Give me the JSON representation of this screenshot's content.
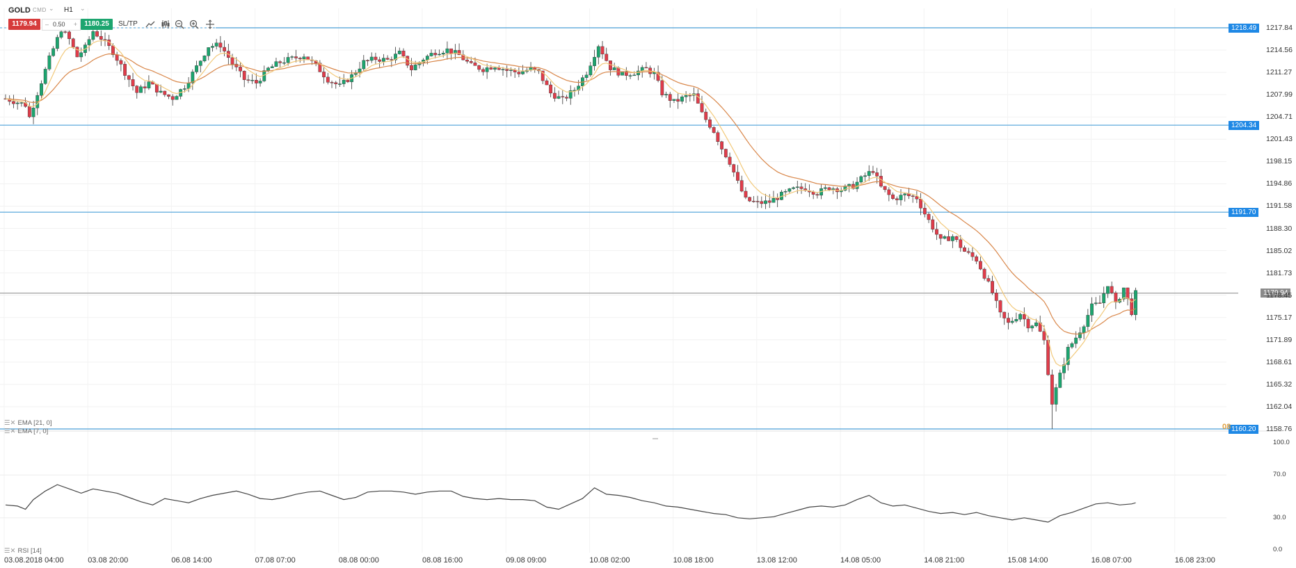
{
  "toolbar": {
    "symbol": "GOLD",
    "market": "CMD",
    "timeframe": "H1",
    "sell_price": "1179.94",
    "lot": "0.50",
    "buy_price": "1180.25",
    "sltp_label": "SL/TP",
    "icons": [
      "line-chart-icon",
      "candles-icon",
      "zoom-out-icon",
      "zoom-in-icon",
      "crosshair-icon"
    ]
  },
  "levels": [
    {
      "label": "1218.49",
      "value": 1218.49
    },
    {
      "label": "1204.34",
      "value": 1204.34
    },
    {
      "label": "1191.70",
      "value": 1191.7
    },
    {
      "label": "1160.20",
      "value": 1160.2
    }
  ],
  "current_price": {
    "label": "1179.94",
    "value": 1179.94
  },
  "price_axis": [
    "1217.84",
    "1214.56",
    "1211.27",
    "1207.99",
    "1204.71",
    "1201.43",
    "1198.15",
    "1194.86",
    "1191.58",
    "1188.30",
    "1185.02",
    "1181.73",
    "1178.45",
    "1175.17",
    "1171.89",
    "1168.61",
    "1165.32",
    "1162.04",
    "1158.76"
  ],
  "rsi_axis": [
    "100.0",
    "70.0",
    "30.0",
    "0.0"
  ],
  "time_axis": [
    "03.08.2018 04:00",
    "03.08 20:00",
    "06.08 14:00",
    "07.08 07:00",
    "08.08 00:00",
    "08.08 16:00",
    "09.08 09:00",
    "10.08 02:00",
    "10.08 18:00",
    "13.08 12:00",
    "14.08 05:00",
    "14.08 21:00",
    "15.08 14:00",
    "16.08 07:00",
    "16.08 23:00"
  ],
  "indicators": {
    "ema21": "EMA [21, 0]",
    "ema7": "EMA [7, 0]",
    "rsi": "RSI [14]",
    "ema_value_hint": "08"
  },
  "colors": {
    "bull": "#1ca56f",
    "bear": "#e03c4a",
    "level_line": "#4a9fd8",
    "level_tag": "#1e88e5",
    "ema21": "#d9874a",
    "ema7": "#f2c97a",
    "rsi_line": "#444444",
    "current_line": "#8a8a8a",
    "current_tag": "#8a8a8a"
  },
  "chart_data": {
    "type": "candlestick",
    "y_range": [
      1158.76,
      1220.0
    ],
    "rsi_range": [
      0,
      100
    ],
    "x_categories": [
      "03.08.2018 04:00",
      "03.08 20:00",
      "06.08 14:00",
      "07.08 07:00",
      "08.08 00:00",
      "08.08 16:00",
      "09.08 09:00",
      "10.08 02:00",
      "10.08 18:00",
      "13.08 12:00",
      "14.08 05:00",
      "14.08 21:00",
      "15.08 14:00",
      "16.08 07:00",
      "16.08 23:00"
    ],
    "path_points": [
      [
        0,
        1208.2
      ],
      [
        5,
        1207.3
      ],
      [
        6,
        1205.5
      ],
      [
        8,
        1209
      ],
      [
        11,
        1214
      ],
      [
        14,
        1218.3
      ],
      [
        16,
        1216.8
      ],
      [
        18,
        1214.3
      ],
      [
        20,
        1215.6
      ],
      [
        22,
        1218
      ],
      [
        24,
        1217
      ],
      [
        27,
        1215
      ],
      [
        30,
        1212
      ],
      [
        33,
        1209.1
      ],
      [
        36,
        1210.5
      ],
      [
        39,
        1209
      ],
      [
        42,
        1208.3
      ],
      [
        45,
        1210
      ],
      [
        48,
        1212.8
      ],
      [
        51,
        1215.8
      ],
      [
        54,
        1216
      ],
      [
        57,
        1213.3
      ],
      [
        60,
        1211
      ],
      [
        63,
        1210.5
      ],
      [
        66,
        1212.5
      ],
      [
        69,
        1213.5
      ],
      [
        72,
        1214
      ],
      [
        75,
        1214.5
      ],
      [
        78,
        1213
      ],
      [
        81,
        1211
      ],
      [
        84,
        1210
      ],
      [
        87,
        1211.5
      ],
      [
        90,
        1213.5
      ],
      [
        93,
        1214
      ],
      [
        96,
        1213.8
      ],
      [
        99,
        1214.8
      ],
      [
        102,
        1212.5
      ],
      [
        105,
        1214
      ],
      [
        108,
        1215
      ],
      [
        111,
        1215.3
      ],
      [
        114,
        1214.5
      ],
      [
        117,
        1213
      ],
      [
        120,
        1212.5
      ],
      [
        123,
        1213
      ],
      [
        126,
        1212.3
      ],
      [
        129,
        1212
      ],
      [
        132,
        1212.5
      ],
      [
        134,
        1212
      ],
      [
        137,
        1209
      ],
      [
        140,
        1208
      ],
      [
        143,
        1209.5
      ],
      [
        146,
        1212
      ],
      [
        149,
        1216
      ],
      [
        152,
        1212.7
      ],
      [
        155,
        1211.7
      ],
      [
        158,
        1212
      ],
      [
        161,
        1212.5
      ],
      [
        163,
        1211.8
      ],
      [
        165,
        1209
      ],
      [
        168,
        1207.7
      ],
      [
        171,
        1208.5
      ],
      [
        173,
        1208.7
      ],
      [
        175,
        1206
      ],
      [
        178,
        1203.5
      ],
      [
        180,
        1201
      ],
      [
        182,
        1199
      ],
      [
        184,
        1196
      ],
      [
        186,
        1193.5
      ],
      [
        189,
        1193
      ],
      [
        192,
        1193.2
      ],
      [
        195,
        1194.2
      ],
      [
        198,
        1195
      ],
      [
        201,
        1195.2
      ],
      [
        204,
        1194.5
      ],
      [
        207,
        1195.3
      ],
      [
        210,
        1195
      ],
      [
        213,
        1195.5
      ],
      [
        216,
        1197
      ],
      [
        218,
        1197.8
      ],
      [
        220,
        1195.3
      ],
      [
        223,
        1193.6
      ],
      [
        226,
        1194.2
      ],
      [
        229,
        1193.8
      ],
      [
        231,
        1191.5
      ],
      [
        233,
        1189.5
      ],
      [
        235,
        1187.5
      ],
      [
        238,
        1188.2
      ],
      [
        241,
        1186
      ],
      [
        244,
        1184.8
      ],
      [
        246,
        1182.5
      ],
      [
        248,
        1180
      ],
      [
        250,
        1176.8
      ],
      [
        252,
        1175.5
      ],
      [
        255,
        1177
      ],
      [
        257,
        1175.3
      ],
      [
        259,
        1175.5
      ],
      [
        261,
        1173
      ],
      [
        263,
        1164
      ],
      [
        265,
        1168
      ],
      [
        267,
        1171.8
      ],
      [
        269,
        1173.5
      ],
      [
        271,
        1175.5
      ],
      [
        273,
        1178
      ],
      [
        275,
        1178.5
      ],
      [
        277,
        1181.3
      ],
      [
        279,
        1178.2
      ],
      [
        281,
        1180.7
      ],
      [
        283,
        1177.2
      ],
      [
        284,
        1179.9
      ]
    ],
    "rsi_points": [
      [
        0,
        42
      ],
      [
        3,
        41
      ],
      [
        5,
        38
      ],
      [
        7,
        47
      ],
      [
        10,
        55
      ],
      [
        13,
        61
      ],
      [
        16,
        57
      ],
      [
        19,
        53
      ],
      [
        22,
        57
      ],
      [
        25,
        55
      ],
      [
        28,
        53
      ],
      [
        31,
        49
      ],
      [
        34,
        45
      ],
      [
        37,
        42
      ],
      [
        40,
        48
      ],
      [
        43,
        46
      ],
      [
        46,
        44
      ],
      [
        49,
        48
      ],
      [
        52,
        51
      ],
      [
        55,
        53
      ],
      [
        58,
        55
      ],
      [
        61,
        52
      ],
      [
        64,
        48
      ],
      [
        67,
        47
      ],
      [
        70,
        49
      ],
      [
        73,
        52
      ],
      [
        76,
        54
      ],
      [
        79,
        55
      ],
      [
        82,
        51
      ],
      [
        85,
        47
      ],
      [
        88,
        49
      ],
      [
        91,
        54
      ],
      [
        94,
        55
      ],
      [
        97,
        55
      ],
      [
        100,
        54
      ],
      [
        103,
        52
      ],
      [
        106,
        54
      ],
      [
        109,
        55
      ],
      [
        112,
        55
      ],
      [
        115,
        50
      ],
      [
        118,
        48
      ],
      [
        121,
        47
      ],
      [
        124,
        48
      ],
      [
        127,
        47
      ],
      [
        130,
        47
      ],
      [
        133,
        46
      ],
      [
        136,
        40
      ],
      [
        139,
        38
      ],
      [
        142,
        43
      ],
      [
        145,
        48
      ],
      [
        148,
        58
      ],
      [
        151,
        52
      ],
      [
        154,
        51
      ],
      [
        157,
        49
      ],
      [
        160,
        46
      ],
      [
        163,
        44
      ],
      [
        166,
        41
      ],
      [
        169,
        40
      ],
      [
        172,
        38
      ],
      [
        175,
        36
      ],
      [
        178,
        34
      ],
      [
        181,
        33
      ],
      [
        184,
        30
      ],
      [
        187,
        29
      ],
      [
        190,
        30
      ],
      [
        193,
        31
      ],
      [
        196,
        34
      ],
      [
        199,
        37
      ],
      [
        202,
        40
      ],
      [
        205,
        41
      ],
      [
        208,
        40
      ],
      [
        211,
        42
      ],
      [
        214,
        47
      ],
      [
        217,
        51
      ],
      [
        220,
        44
      ],
      [
        223,
        41
      ],
      [
        226,
        42
      ],
      [
        229,
        39
      ],
      [
        232,
        36
      ],
      [
        235,
        34
      ],
      [
        238,
        35
      ],
      [
        241,
        33
      ],
      [
        244,
        35
      ],
      [
        247,
        32
      ],
      [
        250,
        30
      ],
      [
        253,
        28
      ],
      [
        256,
        30
      ],
      [
        259,
        28
      ],
      [
        262,
        26
      ],
      [
        265,
        32
      ],
      [
        268,
        35
      ],
      [
        271,
        39
      ],
      [
        274,
        43
      ],
      [
        277,
        44
      ],
      [
        280,
        42
      ],
      [
        283,
        43
      ],
      [
        284,
        44
      ]
    ]
  }
}
